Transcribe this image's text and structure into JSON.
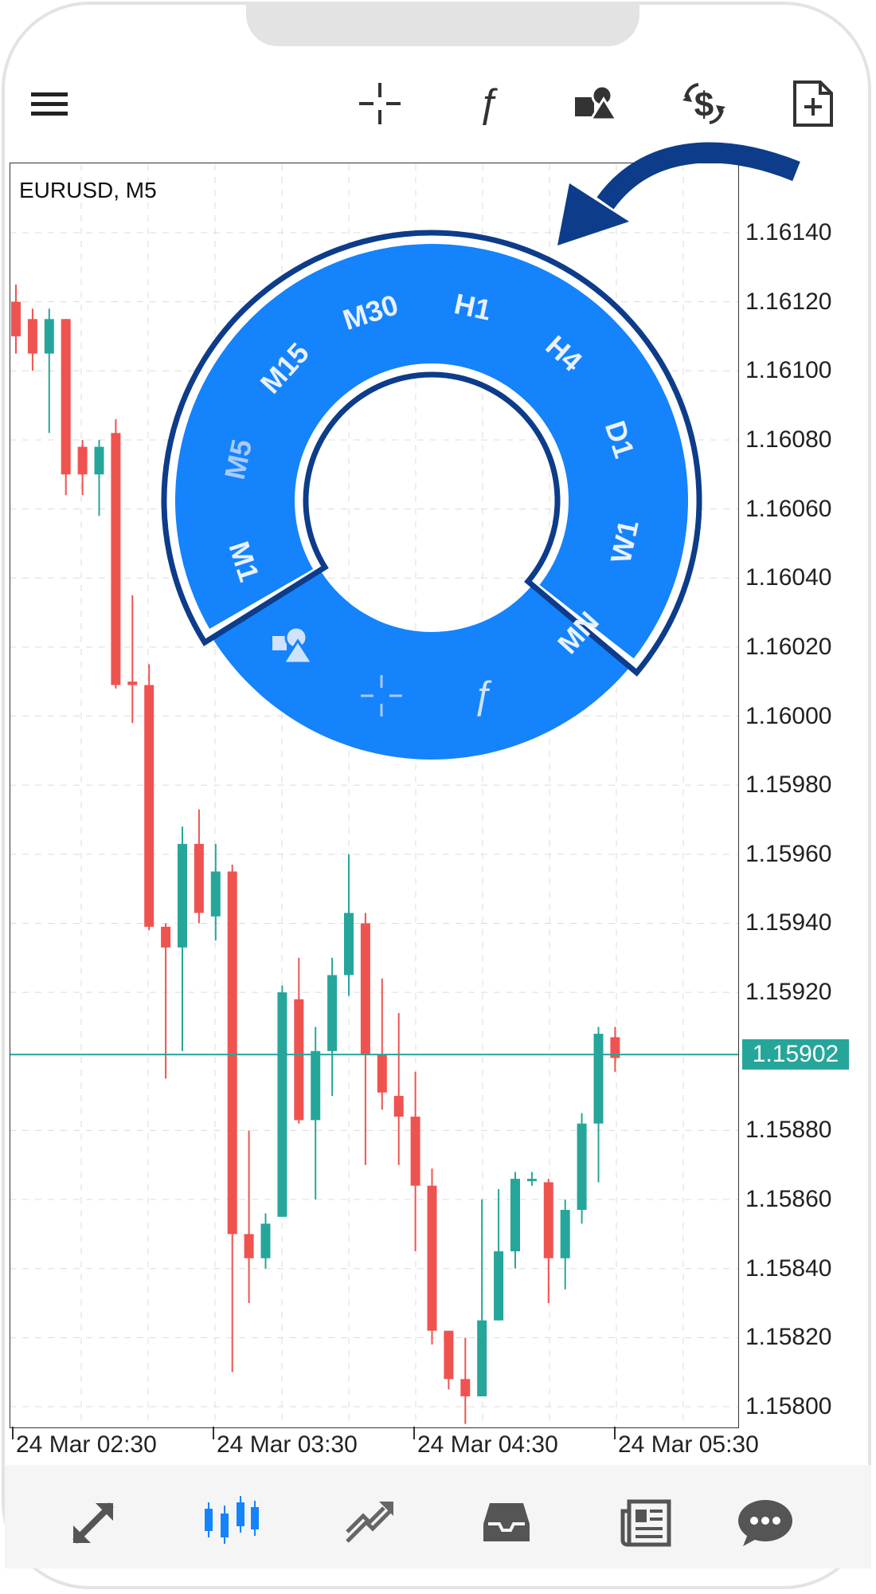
{
  "app": {
    "symbol_label": "EURUSD, M5",
    "current_price": "1.15902"
  },
  "toolbar": {
    "items": [
      {
        "icon": "menu-icon"
      },
      {
        "icon": "crosshair-icon"
      },
      {
        "icon": "indicator-f-icon"
      },
      {
        "icon": "objects-icon"
      },
      {
        "icon": "symbol-change-icon"
      },
      {
        "icon": "new-order-icon"
      }
    ]
  },
  "price_axis": [
    "1.16140",
    "1.16120",
    "1.16100",
    "1.16080",
    "1.16060",
    "1.16040",
    "1.16020",
    "1.16000",
    "1.15980",
    "1.15960",
    "1.15940",
    "1.15920",
    "1.15880",
    "1.15860",
    "1.15840",
    "1.15820",
    "1.15800"
  ],
  "time_axis": [
    "24 Mar 02:30",
    "24 Mar 03:30",
    "24 Mar 04:30",
    "24 Mar 05:30"
  ],
  "timeframes": [
    "M1",
    "M5",
    "M15",
    "M30",
    "H1",
    "H4",
    "D1",
    "W1",
    "MN"
  ],
  "colors": {
    "bull": "#26a69a",
    "bear": "#ef5350",
    "wheel": "#1583fc",
    "outline": "#0d3c8a"
  },
  "nav": {
    "items": [
      {
        "icon": "quotes-icon"
      },
      {
        "icon": "chart-icon",
        "active": true
      },
      {
        "icon": "trade-icon"
      },
      {
        "icon": "history-icon"
      },
      {
        "icon": "news-icon"
      },
      {
        "icon": "chat-icon"
      }
    ]
  },
  "chart_data": {
    "type": "candlestick",
    "symbol": "EURUSD",
    "timeframe": "M5",
    "ylim": [
      1.15795,
      1.16155
    ],
    "x_ticks": [
      "24 Mar 02:30",
      "24 Mar 03:30",
      "24 Mar 04:30",
      "24 Mar 05:30"
    ],
    "candles": [
      {
        "o": 1.1612,
        "h": 1.16125,
        "l": 1.16105,
        "c": 1.1611
      },
      {
        "o": 1.16115,
        "h": 1.16118,
        "l": 1.161,
        "c": 1.16105
      },
      {
        "o": 1.16105,
        "h": 1.16118,
        "l": 1.16082,
        "c": 1.16115
      },
      {
        "o": 1.16115,
        "h": 1.16115,
        "l": 1.16064,
        "c": 1.1607
      },
      {
        "o": 1.16078,
        "h": 1.1608,
        "l": 1.16064,
        "c": 1.1607
      },
      {
        "o": 1.1607,
        "h": 1.1608,
        "l": 1.16058,
        "c": 1.16078
      },
      {
        "o": 1.16082,
        "h": 1.16086,
        "l": 1.16008,
        "c": 1.16009
      },
      {
        "o": 1.1601,
        "h": 1.16035,
        "l": 1.15998,
        "c": 1.16009
      },
      {
        "o": 1.16009,
        "h": 1.16015,
        "l": 1.15938,
        "c": 1.15939
      },
      {
        "o": 1.15939,
        "h": 1.1594,
        "l": 1.15895,
        "c": 1.15933
      },
      {
        "o": 1.15933,
        "h": 1.15968,
        "l": 1.15903,
        "c": 1.15963
      },
      {
        "o": 1.15963,
        "h": 1.15973,
        "l": 1.1594,
        "c": 1.15943
      },
      {
        "o": 1.15942,
        "h": 1.15963,
        "l": 1.15935,
        "c": 1.15955
      },
      {
        "o": 1.15955,
        "h": 1.15957,
        "l": 1.1581,
        "c": 1.1585
      },
      {
        "o": 1.1585,
        "h": 1.1588,
        "l": 1.1583,
        "c": 1.15843
      },
      {
        "o": 1.15843,
        "h": 1.15856,
        "l": 1.1584,
        "c": 1.15853
      },
      {
        "o": 1.15855,
        "h": 1.15922,
        "l": 1.15855,
        "c": 1.1592
      },
      {
        "o": 1.15918,
        "h": 1.1593,
        "l": 1.15882,
        "c": 1.15883
      },
      {
        "o": 1.15883,
        "h": 1.1591,
        "l": 1.1586,
        "c": 1.15903
      },
      {
        "o": 1.15903,
        "h": 1.1593,
        "l": 1.1589,
        "c": 1.15925
      },
      {
        "o": 1.15925,
        "h": 1.1596,
        "l": 1.15919,
        "c": 1.15943
      },
      {
        "o": 1.1594,
        "h": 1.15943,
        "l": 1.1587,
        "c": 1.15902
      },
      {
        "o": 1.15902,
        "h": 1.15924,
        "l": 1.15886,
        "c": 1.15891
      },
      {
        "o": 1.1589,
        "h": 1.15914,
        "l": 1.1587,
        "c": 1.15884
      },
      {
        "o": 1.15884,
        "h": 1.15897,
        "l": 1.15845,
        "c": 1.15864
      },
      {
        "o": 1.15864,
        "h": 1.15869,
        "l": 1.15818,
        "c": 1.15822
      },
      {
        "o": 1.15822,
        "h": 1.15822,
        "l": 1.15805,
        "c": 1.15808
      },
      {
        "o": 1.15808,
        "h": 1.1582,
        "l": 1.15795,
        "c": 1.15803
      },
      {
        "o": 1.15803,
        "h": 1.1586,
        "l": 1.15803,
        "c": 1.15825
      },
      {
        "o": 1.15825,
        "h": 1.15863,
        "l": 1.15825,
        "c": 1.15845
      },
      {
        "o": 1.15845,
        "h": 1.15868,
        "l": 1.1584,
        "c": 1.15866
      },
      {
        "o": 1.15866,
        "h": 1.15868,
        "l": 1.15864,
        "c": 1.15866
      },
      {
        "o": 1.15865,
        "h": 1.15866,
        "l": 1.1583,
        "c": 1.15843
      },
      {
        "o": 1.15843,
        "h": 1.1586,
        "l": 1.15834,
        "c": 1.15857
      },
      {
        "o": 1.15857,
        "h": 1.15885,
        "l": 1.15853,
        "c": 1.15882
      },
      {
        "o": 1.15882,
        "h": 1.1591,
        "l": 1.15865,
        "c": 1.15908
      },
      {
        "o": 1.15907,
        "h": 1.1591,
        "l": 1.15897,
        "c": 1.15901
      }
    ]
  }
}
